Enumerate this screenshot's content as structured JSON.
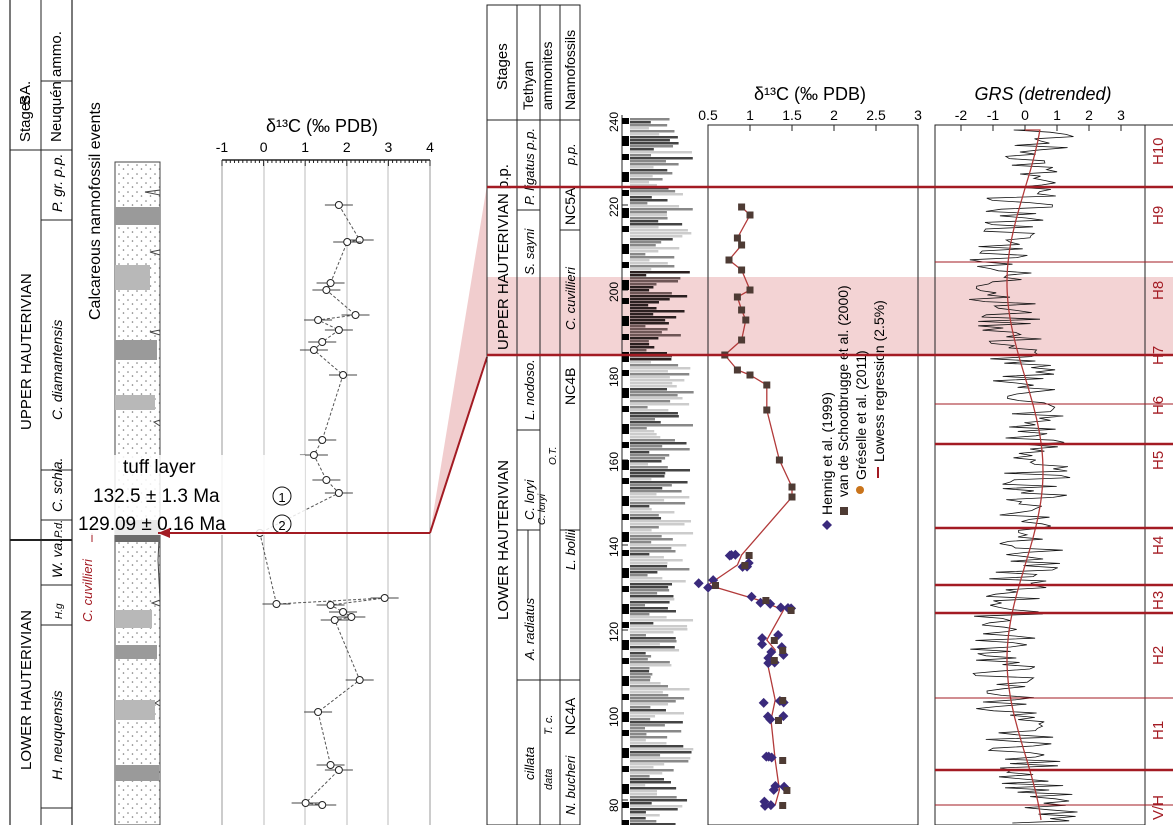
{
  "colors": {
    "red": "#a31b23",
    "band": "#eec0c2",
    "diamond": "#3a2a7c",
    "square": "#4e3b34",
    "dot": "#c9741b",
    "line": "#b23a3a"
  },
  "left": {
    "col_stages": "Stages",
    "col_ammo": "Neuquén ammo.",
    "upper_haut": "UPPER HAUTERIVIAN",
    "lower_haut": "LOWER HAUTERIVIAN",
    "ba": "BA.",
    "p_gr": "P. gr. p.p.",
    "c_diam": "C. diamantensis",
    "c_schla": "C. schla.",
    "pd": "P.d.",
    "w_va": "W. va.",
    "hg": "H.g",
    "h_neu": "H. neuquensis",
    "nanno_label": "Calcareous nannofossil events",
    "c_cuv": "C. cuvillieri",
    "d13c_title": "δ¹³C (‰ PDB)",
    "d13c_ticks": [
      "-1",
      "0",
      "1",
      "2",
      "3",
      "4"
    ],
    "tuff": "tuff layer",
    "age1": "132.5 ± 1.3 Ma",
    "age2": "129.09 ± 0.16 Ma",
    "c1": "1",
    "c2": "2"
  },
  "right": {
    "col_stages": "Stages",
    "col_tethyan": "Tethyan ammonites",
    "col_nanno": "Nannofossils",
    "upper_haut": "UPPER HAUTERIVIAN p.p.",
    "lower_haut": "LOWER HAUTERIVIAN",
    "p_lig": "P. ligatus p.p.",
    "s_sayni": "S. sayni",
    "l_nod": "L. nodoso.",
    "c_loryi": "C. loryi",
    "c_loryi2": "C. loryi",
    "ot": "O.T.",
    "a_rad": "A. radiatus",
    "cillata": "cillata",
    "tc": "T. c.",
    "data": "data",
    "nc5a": "NC5A",
    "pp": "p.p.",
    "nc4b": "NC4B",
    "nc4a": "NC4A",
    "c_cuv": "C. cuvillieri",
    "l_bollii": "L. bollii",
    "n_bucheri": "N. bucheri",
    "depth_ticks": [
      "240",
      "220",
      "200",
      "180",
      "160",
      "140",
      "120",
      "100",
      "80"
    ],
    "d13c_title": "δ¹³C (‰ PDB)",
    "d13c_ticks": [
      "0.5",
      "1",
      "1.5",
      "2",
      "2.5",
      "3"
    ],
    "legend": [
      "Hennig et al. (1999)",
      "van de Schootbrugge et al. (2000)",
      "Gréselle et al. (2011)",
      "Lowess regression (2.5%)"
    ],
    "grs_title": "GRS (detrended)",
    "grs_ticks": [
      "-2",
      "-1",
      "0",
      "1",
      "2",
      "3"
    ],
    "cycles": [
      "H10",
      "H9",
      "H8",
      "H7",
      "H6",
      "H5",
      "H4",
      "H3",
      "H2",
      "H1",
      "V/H"
    ]
  }
}
